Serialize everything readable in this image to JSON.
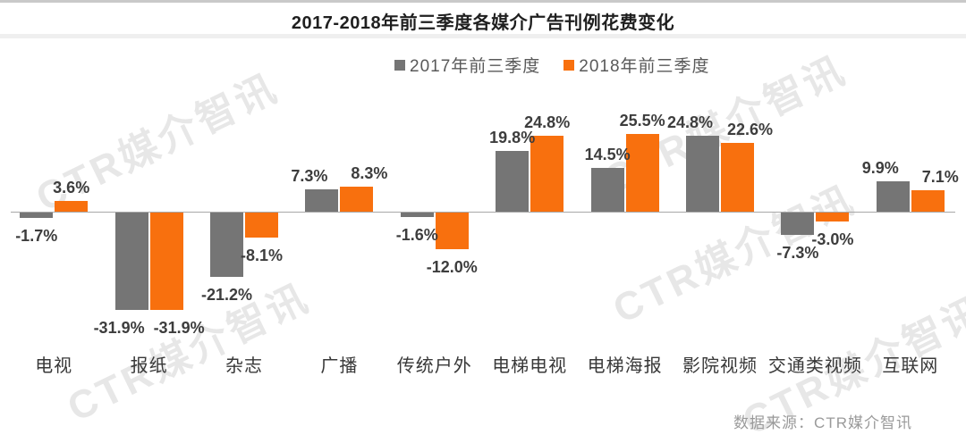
{
  "title": "2017-2018年前三季度各媒介广告刊例花费变化",
  "source": "数据来源：CTR媒介智讯",
  "watermark": "CTR媒介智讯",
  "colors": {
    "series_2017": "#757575",
    "series_2018": "#F8700E",
    "axis": "#a8a8a8"
  },
  "chart_data": {
    "type": "bar",
    "title": "2017-2018年前三季度各媒介广告刊例花费变化",
    "categories": [
      "电视",
      "报纸",
      "杂志",
      "广播",
      "传统户外",
      "电梯电视",
      "电梯海报",
      "影院视频",
      "交通类视频",
      "互联网"
    ],
    "series": [
      {
        "name": "2017年前三季度",
        "color": "#757575",
        "values": [
          -1.7,
          -31.9,
          -21.2,
          7.3,
          -1.6,
          19.8,
          14.5,
          24.8,
          -7.3,
          9.9
        ]
      },
      {
        "name": "2018年前三季度",
        "color": "#F8700E",
        "values": [
          3.6,
          -31.9,
          -8.1,
          8.3,
          -12.0,
          24.8,
          25.5,
          22.6,
          -3.0,
          7.1
        ]
      }
    ],
    "value_suffix": "%",
    "unit": "percent change",
    "ylim": [
      -35,
      30
    ],
    "grid": false,
    "legend_position": "top",
    "data_labels": true
  }
}
